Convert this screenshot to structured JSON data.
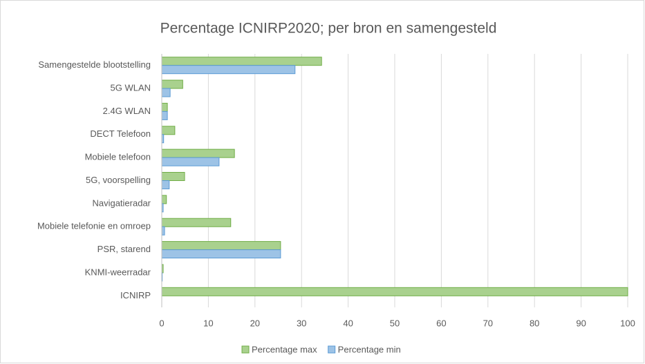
{
  "chart_data": {
    "type": "hbar",
    "title": "Percentage ICNIRP2020; per bron en samengesteld",
    "categories": [
      "Samengestelde blootstelling",
      "5G WLAN",
      "2.4G WLAN",
      "DECT Telefoon",
      "Mobiele telefoon",
      "5G, voorspelling",
      "Navigatieradar",
      "Mobiele telefonie en omroep",
      "PSR, starend",
      "KNMI-weerradar",
      "ICNIRP"
    ],
    "series": [
      {
        "name": "Percentage max",
        "color": "#a9d18e",
        "stroke": "#70ad47",
        "values": [
          34.3,
          4.5,
          1.2,
          2.8,
          15.6,
          4.9,
          1.0,
          14.8,
          25.5,
          0.3,
          100
        ]
      },
      {
        "name": "Percentage min",
        "color": "#9dc3e6",
        "stroke": "#5b9bd5",
        "values": [
          28.6,
          1.8,
          1.2,
          0.4,
          12.3,
          1.6,
          0.3,
          0.6,
          25.5,
          0.1,
          null
        ]
      }
    ],
    "xlim": [
      0,
      100
    ],
    "xticks": [
      0,
      10,
      20,
      30,
      40,
      50,
      60,
      70,
      80,
      90,
      100
    ],
    "grid": true,
    "legend": "bottom"
  }
}
